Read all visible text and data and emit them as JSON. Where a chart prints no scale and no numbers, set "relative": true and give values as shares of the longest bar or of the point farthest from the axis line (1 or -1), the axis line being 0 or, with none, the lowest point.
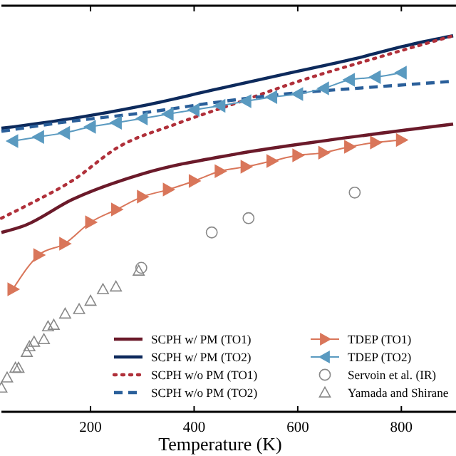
{
  "chart_data": {
    "type": "line",
    "relative": true,
    "xlabel": "Temperature (K)",
    "xlim": [
      28,
      900
    ],
    "xticks": [
      200,
      400,
      600,
      800
    ],
    "grid": false,
    "legend": "bottom right",
    "series": [
      {
        "name": "SCPH w/ PM (TO1)",
        "color": "#6b1a2a",
        "line_style": "solid",
        "marker": "none",
        "x": [
          28,
          74,
          164,
          301,
          483,
          663,
          900
        ],
        "values": [
          0.477,
          0.496,
          0.564,
          0.633,
          0.686,
          0.723,
          0.765
        ]
      },
      {
        "name": "SCPH w/ PM (TO2)",
        "color": "#0d2a5c",
        "line_style": "solid",
        "marker": "none",
        "x": [
          28,
          164,
          301,
          437,
          574,
          710,
          819,
          900
        ],
        "values": [
          0.754,
          0.78,
          0.814,
          0.856,
          0.898,
          0.939,
          0.977,
          1.0
        ]
      },
      {
        "name": "SCPH w/o PM (TO1)",
        "color": "#b0303a",
        "line_style": "dotted",
        "marker": "none",
        "x": [
          28,
          83,
          164,
          255,
          364,
          483,
          593,
          756,
          900
        ],
        "values": [
          0.515,
          0.553,
          0.614,
          0.705,
          0.765,
          0.822,
          0.875,
          0.943,
          1.0
        ]
      },
      {
        "name": "SCPH w/o PM (TO2)",
        "color": "#2a5f9a",
        "line_style": "dashed",
        "marker": "none",
        "x": [
          28,
          164,
          301,
          437,
          574,
          710,
          819,
          900
        ],
        "values": [
          0.746,
          0.773,
          0.795,
          0.822,
          0.845,
          0.86,
          0.871,
          0.879
        ]
      },
      {
        "name": "TDEP (TO1)",
        "color": "#d9765a",
        "line_style": "solid",
        "marker": "triangle-right",
        "x": [
          50,
          100,
          150,
          200,
          250,
          300,
          350,
          400,
          450,
          500,
          550,
          600,
          650,
          700,
          750,
          800
        ],
        "values": [
          0.326,
          0.417,
          0.447,
          0.504,
          0.538,
          0.572,
          0.591,
          0.614,
          0.64,
          0.652,
          0.667,
          0.682,
          0.689,
          0.705,
          0.716,
          0.723
        ]
      },
      {
        "name": "TDEP (TO2)",
        "color": "#5a9ac0",
        "line_style": "solid",
        "marker": "triangle-left",
        "x": [
          50,
          100,
          150,
          200,
          250,
          300,
          350,
          400,
          450,
          500,
          550,
          600,
          650,
          700,
          750,
          800
        ],
        "values": [
          0.72,
          0.731,
          0.742,
          0.758,
          0.769,
          0.78,
          0.792,
          0.803,
          0.814,
          0.826,
          0.837,
          0.845,
          0.86,
          0.883,
          0.89,
          0.902
        ]
      },
      {
        "name": "Servoin et al. (IR)",
        "type": "scatter",
        "color": "#888888",
        "marker": "circle",
        "x": [
          298,
          434,
          505,
          710
        ],
        "values": [
          0.383,
          0.477,
          0.515,
          0.583
        ]
      },
      {
        "name": "Yamada and Shirane",
        "type": "scatter",
        "color": "#888888",
        "marker": "triangle",
        "x": [
          28,
          39,
          55,
          61,
          77,
          82,
          91,
          110,
          118,
          129,
          151,
          178,
          200,
          224,
          249,
          293
        ],
        "values": [
          0.064,
          0.091,
          0.117,
          0.117,
          0.159,
          0.174,
          0.186,
          0.193,
          0.227,
          0.231,
          0.261,
          0.273,
          0.295,
          0.326,
          0.333,
          0.375
        ]
      }
    ]
  }
}
